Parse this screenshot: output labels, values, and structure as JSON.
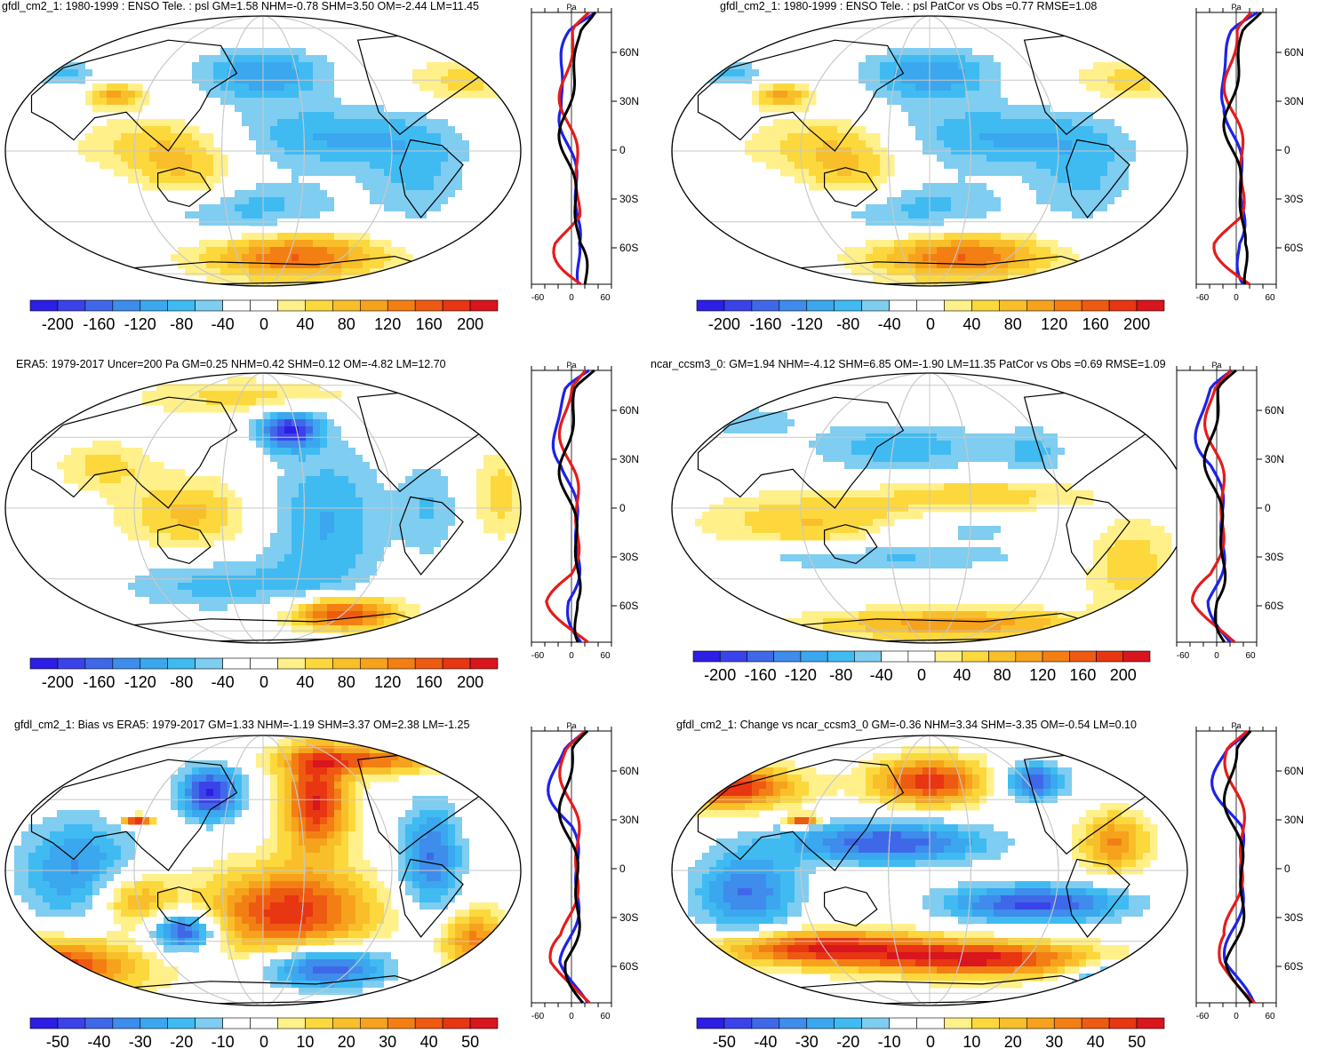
{
  "palettes": {
    "psl": [
      "#2d1ee6",
      "#3a43ea",
      "#3f68e8",
      "#3e8ceb",
      "#3aa7ee",
      "#3fbbf2",
      "#7fcdf0",
      "#ffffff",
      "#ffffff",
      "#fff08a",
      "#fcd83c",
      "#f8bf2a",
      "#f6a21c",
      "#f37f14",
      "#ee5a12",
      "#e83512",
      "#d9151d"
    ],
    "bias": [
      "#2d1ee6",
      "#3a43ea",
      "#3f68e8",
      "#3e8ceb",
      "#3aa7ee",
      "#3fbbf2",
      "#7fcdf0",
      "#ffffff",
      "#ffffff",
      "#fff08a",
      "#fcd83c",
      "#f8bf2a",
      "#f6a21c",
      "#f37f14",
      "#ee5a12",
      "#e83512",
      "#d9151d"
    ]
  },
  "profile_colors": {
    "black": "#000000",
    "blue": "#1d23e6",
    "red": "#e61b1b"
  },
  "profile_axis": {
    "unit_label": "Pa",
    "lat_labels": [
      "60N",
      "30N",
      "0",
      "30S",
      "60S"
    ],
    "x_labels": [
      "-60",
      "0",
      "60"
    ]
  },
  "panels": [
    {
      "id": "p1",
      "title": "gfdl_cm2_1: 1980-1999 : ENSO Tele. : psl GM=1.58 NHM=-0.78 SHM=3.50 OM=-2.44 LM=11.45",
      "colorbar_labels": [
        "-200",
        "-160",
        "-120",
        "-80",
        "-40",
        "0",
        "40",
        "80",
        "120",
        "160",
        "200"
      ],
      "palette": "psl",
      "mode": "model"
    },
    {
      "id": "p2",
      "title": "gfdl_cm2_1: 1980-1999 : ENSO Tele. : psl PatCor vs Obs =0.77 RMSE=1.08",
      "colorbar_labels": [
        "-200",
        "-160",
        "-120",
        "-80",
        "-40",
        "0",
        "40",
        "80",
        "120",
        "160",
        "200"
      ],
      "palette": "psl",
      "mode": "model"
    },
    {
      "id": "p3",
      "title": "ERA5: 1979-2017 Uncer=200 Pa GM=0.25 NHM=0.42 SHM=0.12 OM=-4.82 LM=12.70",
      "colorbar_labels": [
        "-200",
        "-160",
        "-120",
        "-80",
        "-40",
        "0",
        "40",
        "80",
        "120",
        "160",
        "200"
      ],
      "palette": "psl",
      "mode": "obs"
    },
    {
      "id": "p4",
      "title": "ncar_ccsm3_0: GM=1.94 NHM=-4.12 SHM=6.85 OM=-1.90 LM=11.35 PatCor vs Obs =0.69 RMSE=1.09",
      "colorbar_labels": [
        "-200",
        "-160",
        "-120",
        "-80",
        "-40",
        "0",
        "40",
        "80",
        "120",
        "160",
        "200"
      ],
      "palette": "psl",
      "mode": "model2"
    },
    {
      "id": "p5",
      "title": "gfdl_cm2_1: Bias vs ERA5: 1979-2017 GM=1.33 NHM=-1.19 SHM=3.37 OM=2.38 LM=-1.25",
      "colorbar_labels": [
        "-50",
        "-40",
        "-30",
        "-20",
        "-10",
        "0",
        "10",
        "20",
        "30",
        "40",
        "50"
      ],
      "palette": "bias",
      "mode": "bias"
    },
    {
      "id": "p6",
      "title": "gfdl_cm2_1: Change vs ncar_ccsm3_0 GM=-0.36 NHM=3.34 SHM=-3.35 OM=-0.54 LM=0.10",
      "colorbar_labels": [
        "-50",
        "-40",
        "-30",
        "-20",
        "-10",
        "0",
        "10",
        "20",
        "30",
        "40",
        "50"
      ],
      "palette": "bias",
      "mode": "change"
    }
  ],
  "chart_data": [
    {
      "type": "heatmap",
      "title": "gfdl_cm2_1: 1980-1999 : ENSO Tele. : psl GM=1.58 NHM=-0.78 SHM=3.50 OM=-2.44 LM=11.45",
      "colorbar": {
        "min": -200,
        "max": 200,
        "ticks": [
          -200,
          -160,
          -120,
          -80,
          -40,
          0,
          40,
          80,
          120,
          160,
          200
        ]
      },
      "profile_xlim": [
        -60,
        60
      ],
      "profile_ylabels": [
        "60N",
        "30N",
        "0",
        "30S",
        "60S"
      ]
    },
    {
      "type": "heatmap",
      "title": "gfdl_cm2_1: 1980-1999 : ENSO Tele. : psl PatCor vs Obs =0.77 RMSE=1.08",
      "colorbar": {
        "min": -200,
        "max": 200,
        "ticks": [
          -200,
          -160,
          -120,
          -80,
          -40,
          0,
          40,
          80,
          120,
          160,
          200
        ]
      },
      "profile_xlim": [
        -60,
        60
      ]
    },
    {
      "type": "heatmap",
      "title": "ERA5: 1979-2017 Uncer=200 Pa GM=0.25 NHM=0.42 SHM=0.12 OM=-4.82 LM=12.70",
      "colorbar": {
        "min": -200,
        "max": 200,
        "ticks": [
          -200,
          -160,
          -120,
          -80,
          -40,
          0,
          40,
          80,
          120,
          160,
          200
        ]
      },
      "profile_xlim": [
        -60,
        60
      ]
    },
    {
      "type": "heatmap",
      "title": "ncar_ccsm3_0: GM=1.94 NHM=-4.12 SHM=6.85 OM=-1.90 LM=11.35 PatCor vs Obs =0.69 RMSE=1.09",
      "colorbar": {
        "min": -200,
        "max": 200,
        "ticks": [
          -200,
          -160,
          -120,
          -80,
          -40,
          0,
          40,
          80,
          120,
          160,
          200
        ]
      },
      "profile_xlim": [
        -60,
        60
      ]
    },
    {
      "type": "heatmap",
      "title": "gfdl_cm2_1: Bias vs ERA5: 1979-2017 GM=1.33 NHM=-1.19 SHM=3.37 OM=2.38 LM=-1.25",
      "colorbar": {
        "min": -50,
        "max": 50,
        "ticks": [
          -50,
          -40,
          -30,
          -20,
          -10,
          0,
          10,
          20,
          30,
          40,
          50
        ]
      },
      "profile_xlim": [
        -60,
        60
      ]
    },
    {
      "type": "heatmap",
      "title": "gfdl_cm2_1: Change vs ncar_ccsm3_0 GM=-0.36 NHM=3.34 SHM=-3.35 OM=-0.54 LM=0.10",
      "colorbar": {
        "min": -50,
        "max": 50,
        "ticks": [
          -50,
          -40,
          -30,
          -20,
          -10,
          0,
          10,
          20,
          30,
          40,
          50
        ]
      },
      "profile_xlim": [
        -60,
        60
      ]
    }
  ]
}
